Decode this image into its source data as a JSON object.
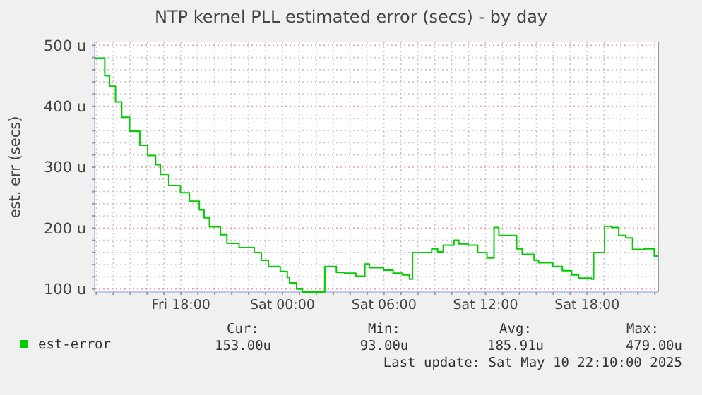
{
  "chart_data": {
    "type": "step",
    "title": "NTP kernel PLL estimated error (secs) - by day",
    "ylabel": "est. err (secs)",
    "x": [
      "2025-05-09T12:54",
      "2025-05-09T13:30",
      "2025-05-09T13:47",
      "2025-05-09T14:08",
      "2025-05-09T14:30",
      "2025-05-09T14:58",
      "2025-05-09T15:34",
      "2025-05-09T16:02",
      "2025-05-09T16:30",
      "2025-05-09T16:47",
      "2025-05-09T17:17",
      "2025-05-09T17:58",
      "2025-05-09T18:30",
      "2025-05-09T19:05",
      "2025-05-09T19:22",
      "2025-05-09T19:41",
      "2025-05-09T20:20",
      "2025-05-09T20:43",
      "2025-05-09T21:26",
      "2025-05-09T22:20",
      "2025-05-09T22:45",
      "2025-05-09T23:10",
      "2025-05-09T23:52",
      "2025-05-10T00:17",
      "2025-05-10T00:25",
      "2025-05-10T00:50",
      "2025-05-10T01:10",
      "2025-05-10T02:30",
      "2025-05-10T03:11",
      "2025-05-10T03:40",
      "2025-05-10T04:20",
      "2025-05-10T04:52",
      "2025-05-10T05:08",
      "2025-05-10T05:58",
      "2025-05-10T06:32",
      "2025-05-10T07:05",
      "2025-05-10T07:30",
      "2025-05-10T07:41",
      "2025-05-10T08:49",
      "2025-05-10T09:10",
      "2025-05-10T09:30",
      "2025-05-10T10:08",
      "2025-05-10T10:25",
      "2025-05-10T10:58",
      "2025-05-10T11:32",
      "2025-05-10T12:05",
      "2025-05-10T12:30",
      "2025-05-10T12:47",
      "2025-05-10T13:50",
      "2025-05-10T14:10",
      "2025-05-10T14:52",
      "2025-05-10T15:08",
      "2025-05-10T15:58",
      "2025-05-10T16:32",
      "2025-05-10T17:05",
      "2025-05-10T17:30",
      "2025-05-10T18:15",
      "2025-05-10T18:23",
      "2025-05-10T19:02",
      "2025-05-10T19:26",
      "2025-05-10T19:52",
      "2025-05-10T20:17",
      "2025-05-10T20:41",
      "2025-05-10T21:23",
      "2025-05-10T21:58",
      "2025-05-10T22:10"
    ],
    "series": [
      {
        "name": "est-error",
        "color": "#00cc00",
        "values": [
          479,
          450,
          433,
          407,
          382,
          359,
          336,
          319,
          304,
          288,
          270,
          258,
          244,
          230,
          217,
          202,
          189,
          175,
          168,
          160,
          147,
          137,
          129,
          119,
          110,
          100,
          95,
          137,
          127,
          126,
          121,
          141,
          135,
          131,
          126,
          123,
          116,
          160,
          166,
          161,
          172,
          180,
          174,
          172,
          160,
          151,
          201,
          188,
          166,
          157,
          147,
          143,
          137,
          130,
          123,
          118,
          116,
          160,
          203,
          201,
          188,
          184,
          165,
          166,
          154,
          153
        ]
      }
    ],
    "xlim": [
      "2025-05-09T12:54",
      "2025-05-10T22:12"
    ],
    "xticks": [
      {
        "value": "2025-05-09T13:00",
        "label": null
      },
      {
        "value": "2025-05-09T14:00",
        "label": null
      },
      {
        "value": "2025-05-09T15:00",
        "label": null
      },
      {
        "value": "2025-05-09T16:00",
        "label": null
      },
      {
        "value": "2025-05-09T17:00",
        "label": null
      },
      {
        "value": "2025-05-09T18:00",
        "label": "Fri 18:00"
      },
      {
        "value": "2025-05-09T19:00",
        "label": null
      },
      {
        "value": "2025-05-09T20:00",
        "label": null
      },
      {
        "value": "2025-05-09T21:00",
        "label": null
      },
      {
        "value": "2025-05-09T22:00",
        "label": null
      },
      {
        "value": "2025-05-09T23:00",
        "label": null
      },
      {
        "value": "2025-05-10T00:00",
        "label": "Sat 00:00"
      },
      {
        "value": "2025-05-10T01:00",
        "label": null
      },
      {
        "value": "2025-05-10T02:00",
        "label": null
      },
      {
        "value": "2025-05-10T03:00",
        "label": null
      },
      {
        "value": "2025-05-10T04:00",
        "label": null
      },
      {
        "value": "2025-05-10T05:00",
        "label": null
      },
      {
        "value": "2025-05-10T06:00",
        "label": "Sat 06:00"
      },
      {
        "value": "2025-05-10T07:00",
        "label": null
      },
      {
        "value": "2025-05-10T08:00",
        "label": null
      },
      {
        "value": "2025-05-10T09:00",
        "label": null
      },
      {
        "value": "2025-05-10T10:00",
        "label": null
      },
      {
        "value": "2025-05-10T11:00",
        "label": null
      },
      {
        "value": "2025-05-10T12:00",
        "label": "Sat 12:00"
      },
      {
        "value": "2025-05-10T13:00",
        "label": null
      },
      {
        "value": "2025-05-10T14:00",
        "label": null
      },
      {
        "value": "2025-05-10T15:00",
        "label": null
      },
      {
        "value": "2025-05-10T16:00",
        "label": null
      },
      {
        "value": "2025-05-10T17:00",
        "label": null
      },
      {
        "value": "2025-05-10T18:00",
        "label": "Sat 18:00"
      },
      {
        "value": "2025-05-10T19:00",
        "label": null
      },
      {
        "value": "2025-05-10T20:00",
        "label": null
      },
      {
        "value": "2025-05-10T21:00",
        "label": null
      },
      {
        "value": "2025-05-10T22:00",
        "label": null
      }
    ],
    "ylim": [
      95,
      505
    ],
    "yticks": [
      {
        "value": 100,
        "label": "100 u"
      },
      {
        "value": 120,
        "label": null
      },
      {
        "value": 140,
        "label": null
      },
      {
        "value": 160,
        "label": null
      },
      {
        "value": 180,
        "label": null
      },
      {
        "value": 200,
        "label": "200 u"
      },
      {
        "value": 220,
        "label": null
      },
      {
        "value": 240,
        "label": null
      },
      {
        "value": 260,
        "label": null
      },
      {
        "value": 280,
        "label": null
      },
      {
        "value": 300,
        "label": "300 u"
      },
      {
        "value": 320,
        "label": null
      },
      {
        "value": 340,
        "label": null
      },
      {
        "value": 360,
        "label": null
      },
      {
        "value": 380,
        "label": null
      },
      {
        "value": 400,
        "label": "400 u"
      },
      {
        "value": 420,
        "label": null
      },
      {
        "value": 440,
        "label": null
      },
      {
        "value": 460,
        "label": null
      },
      {
        "value": 480,
        "label": null
      },
      {
        "value": 500,
        "label": "500 u"
      }
    ],
    "grid": true,
    "legend": "bottom",
    "annotations": [
      "Cur:",
      "Min:",
      "Avg:",
      "Max:",
      "153.00u",
      "93.00u",
      "185.91u",
      "479.00u",
      "Last update: Sat May 10 22:10:00 2025"
    ]
  }
}
